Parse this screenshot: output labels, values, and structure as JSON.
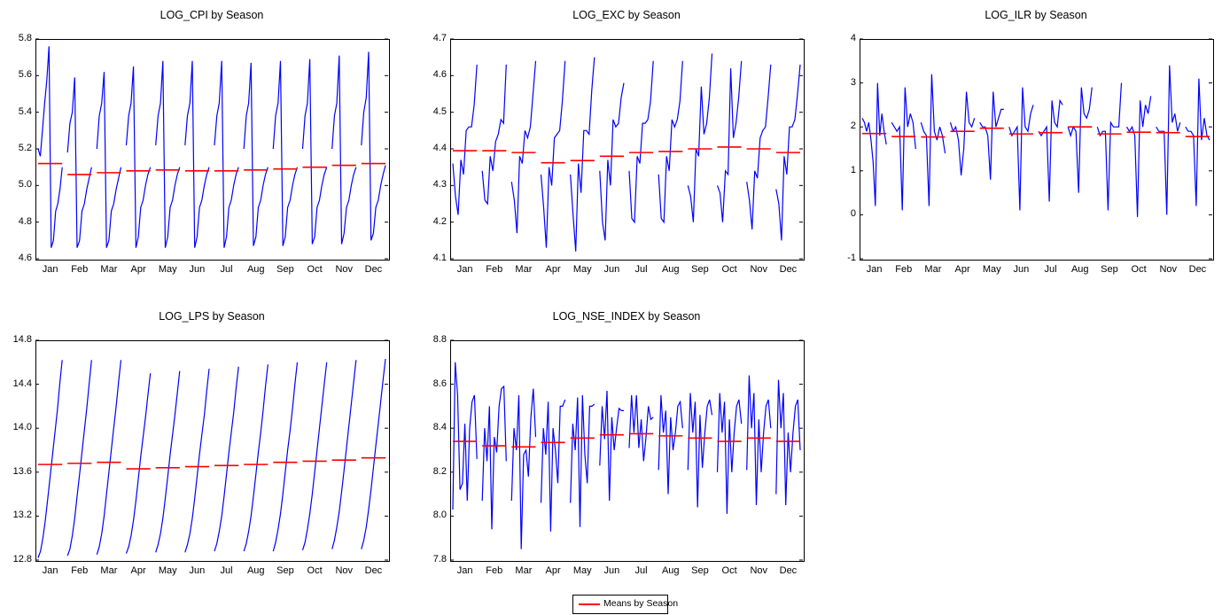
{
  "legend": {
    "label": "Means by Season",
    "color": "#ff0000"
  },
  "colors": {
    "line": "#0000ff",
    "mean": "#ff0000"
  },
  "chart_data": [
    {
      "type": "line",
      "title": "LOG_CPI by Season",
      "categories": [
        "Jan",
        "Feb",
        "Mar",
        "Apr",
        "May",
        "Jun",
        "Jul",
        "Aug",
        "Sep",
        "Oct",
        "Nov",
        "Dec"
      ],
      "ylim": [
        4.6,
        5.8
      ],
      "yticks": [
        "4.6",
        "4.8",
        "5.0",
        "5.2",
        "5.4",
        "5.6",
        "5.8"
      ],
      "means": [
        5.12,
        5.06,
        5.07,
        5.08,
        5.085,
        5.08,
        5.08,
        5.085,
        5.09,
        5.1,
        5.11,
        5.12
      ],
      "season_series": [
        [
          5.2,
          5.16,
          5.3,
          5.45,
          5.58,
          5.76,
          4.66,
          4.7,
          4.86,
          4.9,
          4.98,
          5.1
        ],
        [
          5.18,
          5.34,
          5.4,
          5.59,
          4.66,
          4.7,
          4.86,
          4.9,
          4.98,
          5.04,
          5.1
        ],
        [
          5.2,
          5.38,
          5.45,
          5.62,
          4.66,
          4.7,
          4.86,
          4.9,
          4.98,
          5.04,
          5.1
        ],
        [
          5.22,
          5.38,
          5.45,
          5.65,
          4.66,
          4.72,
          4.88,
          4.92,
          5.0,
          5.06,
          5.1
        ],
        [
          5.22,
          5.38,
          5.45,
          5.68,
          4.66,
          4.72,
          4.88,
          4.92,
          5.0,
          5.06,
          5.1
        ],
        [
          5.22,
          5.38,
          5.45,
          5.68,
          4.66,
          4.72,
          4.88,
          4.92,
          5.0,
          5.06,
          5.1
        ],
        [
          5.22,
          5.38,
          5.45,
          5.68,
          4.66,
          4.72,
          4.88,
          4.92,
          5.0,
          5.06,
          5.1
        ],
        [
          5.2,
          5.38,
          5.45,
          5.67,
          4.67,
          4.72,
          4.88,
          4.92,
          5.0,
          5.06,
          5.1
        ],
        [
          5.2,
          5.38,
          5.45,
          5.68,
          4.67,
          4.72,
          4.88,
          4.92,
          5.0,
          5.06,
          5.1
        ],
        [
          5.2,
          5.38,
          5.45,
          5.69,
          4.68,
          4.72,
          4.88,
          4.92,
          5.0,
          5.06,
          5.1
        ],
        [
          5.2,
          5.38,
          5.45,
          5.71,
          4.68,
          4.74,
          4.88,
          4.92,
          5.0,
          5.06,
          5.1
        ],
        [
          5.22,
          5.4,
          5.48,
          5.73,
          4.7,
          4.74,
          4.88,
          4.92,
          5.0,
          5.06,
          5.11
        ]
      ]
    },
    {
      "type": "line",
      "title": "LOG_EXC by Season",
      "categories": [
        "Jan",
        "Feb",
        "Mar",
        "Apr",
        "May",
        "Jun",
        "Jul",
        "Aug",
        "Sep",
        "Oct",
        "Nov",
        "Dec"
      ],
      "ylim": [
        4.1,
        4.7
      ],
      "yticks": [
        "4.1",
        "4.2",
        "4.3",
        "4.4",
        "4.5",
        "4.6",
        "4.7"
      ],
      "means": [
        4.395,
        4.395,
        4.39,
        4.362,
        4.368,
        4.38,
        4.39,
        4.393,
        4.4,
        4.405,
        4.4,
        4.39
      ],
      "season_series": [
        [
          4.36,
          4.27,
          4.22,
          4.37,
          4.33,
          4.45,
          4.46,
          4.46,
          4.52,
          4.63
        ],
        [
          4.34,
          4.26,
          4.25,
          4.38,
          4.34,
          4.42,
          4.44,
          4.48,
          4.47,
          4.63
        ],
        [
          4.31,
          4.26,
          4.17,
          4.38,
          4.36,
          4.45,
          4.43,
          4.46,
          4.55,
          4.64
        ],
        [
          4.33,
          4.24,
          4.13,
          4.35,
          4.3,
          4.43,
          4.44,
          4.45,
          4.53,
          4.64
        ],
        [
          4.33,
          4.22,
          4.12,
          4.36,
          4.28,
          4.45,
          4.45,
          4.44,
          4.56,
          4.65
        ],
        [
          4.34,
          4.2,
          4.15,
          4.37,
          4.3,
          4.48,
          4.46,
          4.47,
          4.54,
          4.58
        ],
        [
          4.34,
          4.21,
          4.2,
          4.38,
          4.36,
          4.47,
          4.47,
          4.48,
          4.53,
          4.64
        ],
        [
          4.33,
          4.21,
          4.2,
          4.38,
          4.34,
          4.48,
          4.46,
          4.48,
          4.53,
          4.64
        ],
        [
          4.3,
          4.27,
          4.2,
          4.4,
          4.38,
          4.57,
          4.44,
          4.47,
          4.54,
          4.66
        ],
        [
          4.3,
          4.28,
          4.2,
          4.34,
          4.33,
          4.62,
          4.43,
          4.47,
          4.54,
          4.64
        ],
        [
          4.31,
          4.26,
          4.18,
          4.34,
          4.32,
          4.43,
          4.45,
          4.46,
          4.54,
          4.63
        ],
        [
          4.29,
          4.25,
          4.15,
          4.38,
          4.33,
          4.46,
          4.46,
          4.48,
          4.55,
          4.63
        ]
      ]
    },
    {
      "type": "line",
      "title": "LOG_ILR by Season",
      "categories": [
        "Jan",
        "Feb",
        "Mar",
        "Apr",
        "May",
        "Jun",
        "Jul",
        "Aug",
        "Sep",
        "Oct",
        "Nov",
        "Dec"
      ],
      "ylim": [
        -1,
        4
      ],
      "yticks": [
        "-1",
        "0",
        "1",
        "2",
        "3",
        "4"
      ],
      "means": [
        1.85,
        1.78,
        1.77,
        1.9,
        1.97,
        1.84,
        1.87,
        2.0,
        1.84,
        1.88,
        1.87,
        1.78
      ],
      "season_series": [
        [
          2.2,
          2.1,
          1.9,
          2.1,
          1.7,
          1.2,
          0.2,
          3.0,
          1.8,
          2.3,
          1.9,
          1.6
        ],
        [
          2.1,
          2.0,
          1.9,
          2.0,
          0.1,
          2.9,
          2.0,
          2.3,
          2.1,
          1.5
        ],
        [
          2.1,
          1.9,
          1.8,
          0.2,
          3.2,
          1.9,
          1.7,
          2.0,
          1.8,
          1.4
        ],
        [
          2.1,
          1.9,
          2.0,
          1.7,
          0.9,
          1.5,
          2.8,
          2.1,
          2.0,
          2.2
        ],
        [
          2.1,
          2.0,
          2.0,
          1.8,
          0.8,
          2.8,
          2.0,
          2.2,
          2.4,
          2.4
        ],
        [
          2.0,
          1.8,
          1.9,
          2.0,
          0.1,
          2.9,
          2.0,
          1.9,
          2.3,
          2.5
        ],
        [
          1.9,
          1.8,
          1.9,
          2.0,
          0.3,
          2.6,
          2.1,
          2.0,
          2.6,
          2.5
        ],
        [
          2.0,
          1.8,
          2.0,
          1.9,
          0.5,
          2.9,
          2.3,
          2.2,
          2.4,
          2.9
        ],
        [
          2.0,
          1.8,
          1.9,
          1.9,
          0.1,
          2.1,
          2.0,
          2.0,
          2.0,
          3.0
        ],
        [
          2.0,
          1.9,
          2.0,
          1.8,
          -0.05,
          2.6,
          2.0,
          2.5,
          2.3,
          2.7
        ],
        [
          2.0,
          1.9,
          1.9,
          1.9,
          0.0,
          3.4,
          2.1,
          2.3,
          1.9,
          2.1
        ],
        [
          2.0,
          1.9,
          1.9,
          1.8,
          0.2,
          3.1,
          1.7,
          2.2,
          1.8,
          1.7
        ]
      ]
    },
    {
      "type": "line",
      "title": "LOG_LPS by Season",
      "categories": [
        "Jan",
        "Feb",
        "Mar",
        "Apr",
        "May",
        "Jun",
        "Jul",
        "Aug",
        "Sep",
        "Oct",
        "Nov",
        "Dec"
      ],
      "ylim": [
        12.8,
        14.8
      ],
      "yticks": [
        "12.8",
        "13.2",
        "13.6",
        "14.0",
        "14.4",
        "14.8"
      ],
      "means": [
        13.67,
        13.68,
        13.69,
        13.63,
        13.64,
        13.65,
        13.66,
        13.67,
        13.69,
        13.7,
        13.71,
        13.73
      ],
      "season_series": [
        [
          12.82,
          12.88,
          13.0,
          13.16,
          13.36,
          13.56,
          13.76,
          13.96,
          14.16,
          14.4,
          14.62
        ],
        [
          12.84,
          12.9,
          13.02,
          13.18,
          13.38,
          13.58,
          13.78,
          13.98,
          14.18,
          14.4,
          14.62
        ],
        [
          12.85,
          12.92,
          13.04,
          13.2,
          13.4,
          13.6,
          13.8,
          14.0,
          14.2,
          14.42,
          14.62
        ],
        [
          12.86,
          12.92,
          13.02,
          13.16,
          13.34,
          13.54,
          13.74,
          13.92,
          14.1,
          14.3,
          14.5
        ],
        [
          12.87,
          12.94,
          13.04,
          13.18,
          13.36,
          13.56,
          13.76,
          13.94,
          14.12,
          14.32,
          14.52
        ],
        [
          12.87,
          12.94,
          13.04,
          13.18,
          13.36,
          13.56,
          13.76,
          13.94,
          14.12,
          14.34,
          14.54
        ],
        [
          12.88,
          12.95,
          13.06,
          13.2,
          13.38,
          13.58,
          13.78,
          13.96,
          14.14,
          14.36,
          14.56
        ],
        [
          12.88,
          12.95,
          13.06,
          13.2,
          13.38,
          13.58,
          13.78,
          13.96,
          14.16,
          14.38,
          14.58
        ],
        [
          12.88,
          12.96,
          13.08,
          13.22,
          13.4,
          13.6,
          13.8,
          13.98,
          14.18,
          14.4,
          14.6
        ],
        [
          12.89,
          12.96,
          13.08,
          13.22,
          13.4,
          13.6,
          13.8,
          14.0,
          14.2,
          14.4,
          14.6
        ],
        [
          12.9,
          12.98,
          13.1,
          13.24,
          13.42,
          13.62,
          13.82,
          14.02,
          14.22,
          14.42,
          14.62
        ],
        [
          12.9,
          12.98,
          13.1,
          13.26,
          13.44,
          13.64,
          13.84,
          14.04,
          14.24,
          14.44,
          14.63
        ]
      ]
    },
    {
      "type": "line",
      "title": "LOG_NSE_INDEX by Season",
      "categories": [
        "Jan",
        "Feb",
        "Mar",
        "Apr",
        "May",
        "Jun",
        "Jul",
        "Aug",
        "Sep",
        "Oct",
        "Nov",
        "Dec"
      ],
      "ylim": [
        7.8,
        8.8
      ],
      "yticks": [
        "7.8",
        "8.0",
        "8.2",
        "8.4",
        "8.6",
        "8.8"
      ],
      "means": [
        8.34,
        8.32,
        8.315,
        8.335,
        8.355,
        8.37,
        8.375,
        8.365,
        8.355,
        8.34,
        8.355,
        8.34
      ],
      "season_series": [
        [
          8.03,
          8.7,
          8.55,
          8.12,
          8.15,
          8.42,
          8.07,
          8.4,
          8.52,
          8.55,
          8.26
        ],
        [
          8.07,
          8.4,
          8.25,
          8.5,
          7.94,
          8.36,
          8.29,
          8.5,
          8.58,
          8.59,
          8.25
        ],
        [
          8.07,
          8.4,
          8.3,
          8.55,
          7.85,
          8.28,
          8.3,
          8.18,
          8.45,
          8.58,
          8.36
        ],
        [
          8.06,
          8.4,
          8.28,
          8.52,
          7.93,
          8.4,
          8.3,
          8.15,
          8.5,
          8.5,
          8.53
        ],
        [
          8.06,
          8.42,
          8.3,
          8.54,
          7.95,
          8.55,
          8.28,
          8.15,
          8.5,
          8.5,
          8.51
        ],
        [
          8.23,
          8.5,
          8.35,
          8.57,
          8.07,
          8.45,
          8.3,
          8.4,
          8.49,
          8.48,
          8.48
        ],
        [
          8.31,
          8.55,
          8.38,
          8.55,
          8.31,
          8.44,
          8.25,
          8.36,
          8.5,
          8.44,
          8.45
        ],
        [
          8.21,
          8.55,
          8.38,
          8.48,
          8.1,
          8.45,
          8.3,
          8.38,
          8.5,
          8.52,
          8.4
        ],
        [
          8.21,
          8.56,
          8.38,
          8.52,
          8.04,
          8.46,
          8.22,
          8.38,
          8.5,
          8.53,
          8.46
        ],
        [
          8.2,
          8.56,
          8.38,
          8.52,
          8.01,
          8.44,
          8.2,
          8.38,
          8.5,
          8.53,
          8.42
        ],
        [
          8.21,
          8.64,
          8.4,
          8.56,
          8.05,
          8.44,
          8.2,
          8.38,
          8.5,
          8.53,
          8.4
        ],
        [
          8.1,
          8.62,
          8.4,
          8.56,
          8.05,
          8.38,
          8.2,
          8.38,
          8.5,
          8.53,
          8.3
        ]
      ]
    }
  ]
}
